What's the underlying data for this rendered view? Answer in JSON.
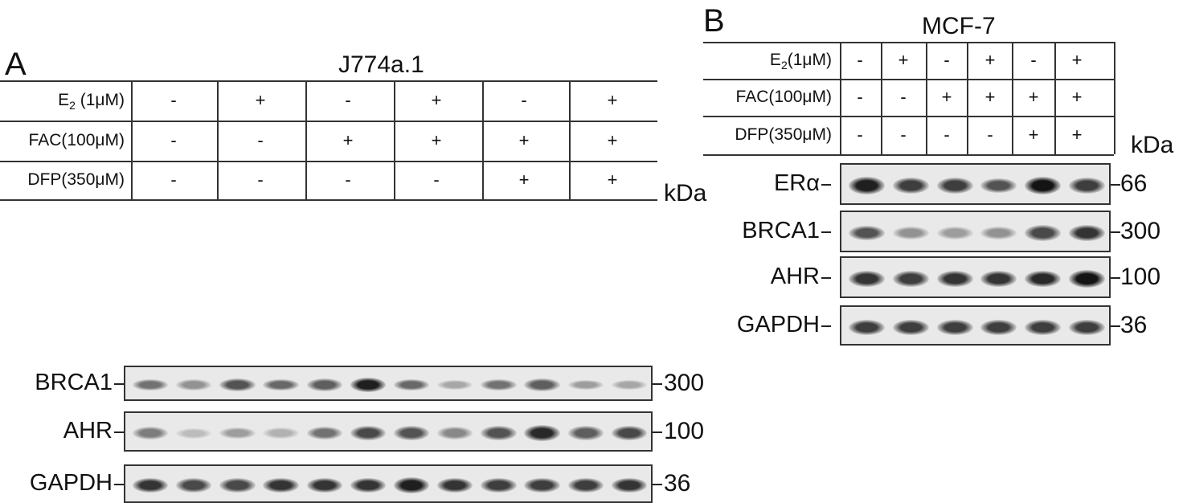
{
  "panel_a": {
    "letter": "A",
    "title": "J774a.1",
    "kda_label": "kDa",
    "conditions": [
      {
        "label_main": "E",
        "label_sub": "2",
        "label_rest": " (1μM)",
        "signs": [
          "-",
          "+",
          "-",
          "+",
          "-",
          "+"
        ]
      },
      {
        "label_main": "FAC(100μM)",
        "label_sub": "",
        "label_rest": "",
        "signs": [
          "-",
          "-",
          "+",
          "+",
          "+",
          "+"
        ]
      },
      {
        "label_main": "DFP(350μM)",
        "label_sub": "",
        "label_rest": "",
        "signs": [
          "-",
          "-",
          "-",
          "-",
          "+",
          "+"
        ]
      }
    ],
    "blots": [
      {
        "label": "BRCA1",
        "mw": "300",
        "intensities": [
          0.55,
          0.4,
          0.7,
          0.6,
          0.65,
          0.95,
          0.6,
          0.3,
          0.55,
          0.65,
          0.35,
          0.3
        ]
      },
      {
        "label": "AHR",
        "mw": "100",
        "intensities": [
          0.5,
          0.2,
          0.35,
          0.25,
          0.55,
          0.75,
          0.7,
          0.45,
          0.7,
          0.9,
          0.65,
          0.75
        ]
      },
      {
        "label": "GAPDH",
        "mw": "36",
        "intensities": [
          0.85,
          0.75,
          0.75,
          0.85,
          0.85,
          0.85,
          0.95,
          0.85,
          0.8,
          0.8,
          0.8,
          0.85
        ]
      }
    ]
  },
  "panel_b": {
    "letter": "B",
    "title": "MCF-7",
    "kda_label": "kDa",
    "conditions": [
      {
        "label_main": "E",
        "label_sub": "2",
        "label_rest": "(1μM)",
        "signs": [
          "-",
          "+",
          "-",
          "+",
          "-",
          "+"
        ]
      },
      {
        "label_main": "FAC(100μM)",
        "label_sub": "",
        "label_rest": "",
        "signs": [
          "-",
          "-",
          "+",
          "+",
          "+",
          "+"
        ]
      },
      {
        "label_main": "DFP(350μM)",
        "label_sub": "",
        "label_rest": "",
        "signs": [
          "-",
          "-",
          "-",
          "-",
          "+",
          "+"
        ]
      }
    ],
    "blots": [
      {
        "label": "ERα",
        "mw": "66",
        "intensities": [
          0.95,
          0.8,
          0.8,
          0.7,
          1.0,
          0.8
        ]
      },
      {
        "label": "BRCA1",
        "mw": "300",
        "intensities": [
          0.7,
          0.4,
          0.35,
          0.4,
          0.75,
          0.85
        ]
      },
      {
        "label": "AHR",
        "mw": "100",
        "intensities": [
          0.85,
          0.8,
          0.85,
          0.85,
          0.9,
          1.0
        ]
      },
      {
        "label": "GAPDH",
        "mw": "36",
        "intensities": [
          0.8,
          0.8,
          0.8,
          0.8,
          0.8,
          0.8
        ]
      }
    ]
  }
}
